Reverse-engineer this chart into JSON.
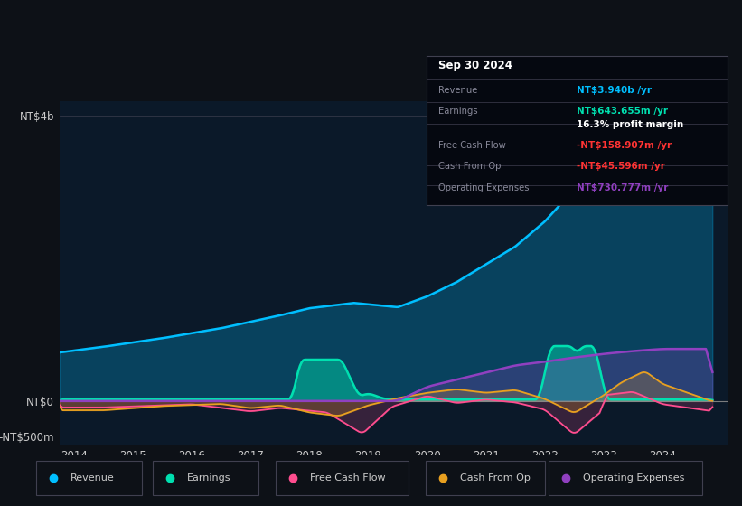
{
  "bg_color": "#0d1117",
  "plot_bg_color": "#0b1929",
  "colors": {
    "revenue": "#00bfff",
    "earnings": "#00e0b0",
    "free_cash_flow": "#ff4d8f",
    "cash_from_op": "#e8a020",
    "operating_expenses": "#9040c0"
  },
  "legend_items": [
    "Revenue",
    "Earnings",
    "Free Cash Flow",
    "Cash From Op",
    "Operating Expenses"
  ],
  "legend_colors": [
    "#00bfff",
    "#00e0b0",
    "#ff4d8f",
    "#e8a020",
    "#9040c0"
  ],
  "ylabel_top": "NT$4b",
  "ylabel_zero": "NT$0",
  "ylabel_neg": "-NT$500m",
  "x_labels": [
    "2014",
    "2015",
    "2016",
    "2017",
    "2018",
    "2019",
    "2020",
    "2021",
    "2022",
    "2023",
    "2024"
  ],
  "tooltip": {
    "date": "Sep 30 2024",
    "revenue": "NT$3.940b /yr",
    "revenue_color": "#00bfff",
    "earnings": "NT$643.655m /yr",
    "earnings_color": "#00e0b0",
    "profit_margin": "16.3% profit margin",
    "fcf": "-NT$158.907m /yr",
    "fcf_color": "#ff3333",
    "cfop": "-NT$45.596m /yr",
    "cfop_color": "#ff3333",
    "opex": "NT$730.777m /yr",
    "opex_color": "#9040c0"
  }
}
